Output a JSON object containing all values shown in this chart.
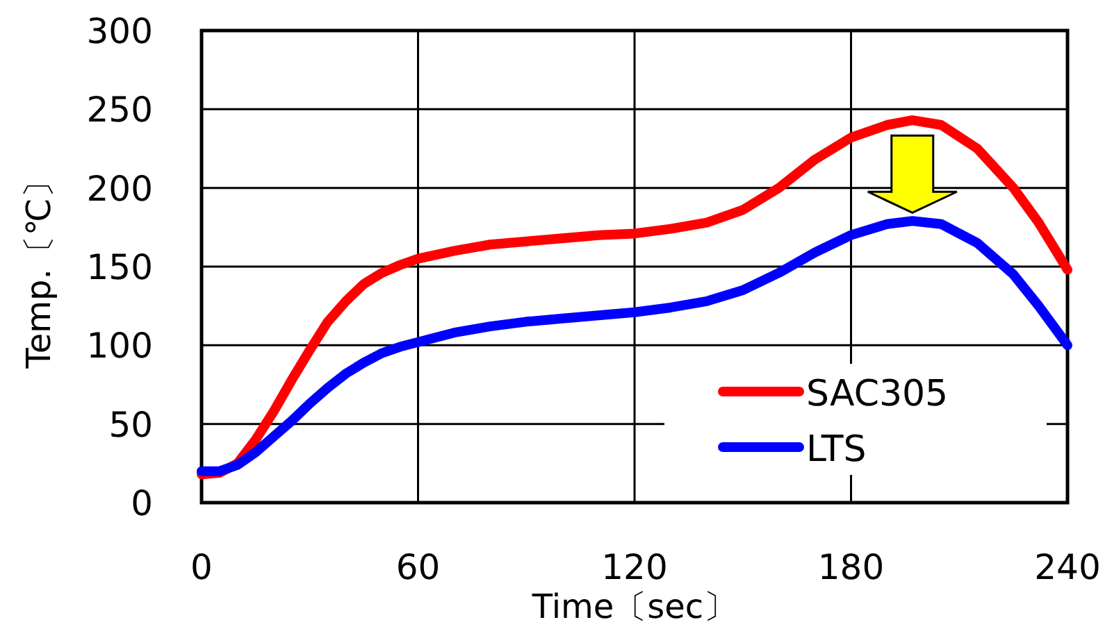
{
  "chart_data": {
    "type": "line",
    "xlabel": "Time〔sec〕",
    "ylabel": "Temp.〔℃〕",
    "x": [
      0,
      5,
      10,
      15,
      20,
      25,
      30,
      35,
      40,
      45,
      50,
      55,
      60,
      70,
      80,
      90,
      100,
      110,
      120,
      130,
      140,
      150,
      160,
      170,
      180,
      190,
      197,
      205,
      215,
      225,
      232,
      240
    ],
    "series": [
      {
        "name": "SAC305",
        "color": "#ff0000",
        "values": [
          18,
          19,
          25,
          40,
          58,
          78,
          97,
          115,
          128,
          139,
          146,
          151,
          155,
          160,
          164,
          166,
          168,
          170,
          171,
          174,
          178,
          186,
          200,
          218,
          232,
          240,
          243,
          240,
          225,
          200,
          178,
          148
        ]
      },
      {
        "name": "LTS",
        "color": "#0000ff",
        "values": [
          20,
          20,
          24,
          32,
          42,
          52,
          63,
          73,
          82,
          89,
          95,
          99,
          102,
          108,
          112,
          115,
          117,
          119,
          121,
          124,
          128,
          135,
          146,
          159,
          170,
          177,
          179,
          177,
          165,
          145,
          125,
          100
        ]
      }
    ],
    "xlim": [
      0,
      240
    ],
    "xticks": [
      0,
      60,
      120,
      180,
      240
    ],
    "ylim": [
      0,
      300
    ],
    "yticks": [
      0,
      50,
      100,
      150,
      200,
      250,
      300
    ],
    "grid": true,
    "legend": "bottom right"
  }
}
